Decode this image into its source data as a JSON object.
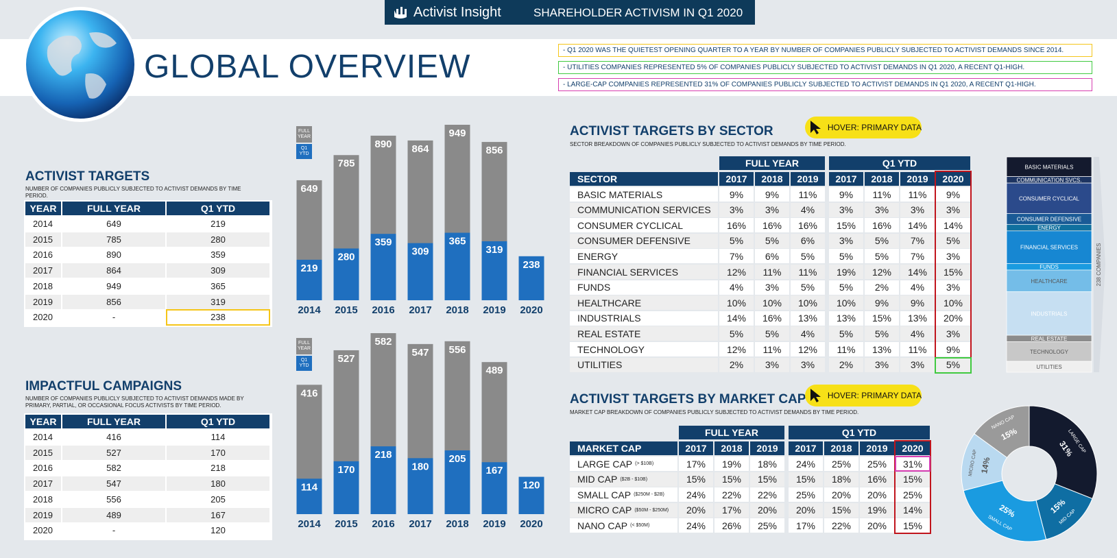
{
  "header": {
    "brand": "Activist Insight",
    "title": "SHAREHOLDER ACTIVISM IN Q1 2020"
  },
  "page_title": "GLOBAL OVERVIEW",
  "notes": [
    "- Q1 2020 WAS THE QUIETEST OPENING QUARTER TO A YEAR BY NUMBER OF COMPANIES PUBLICLY SUBJECTED TO ACTIVIST DEMANDS SINCE 2014.",
    "- UTILITIES COMPANIES REPRESENTED 5% OF COMPANIES PUBLICLY SUBJECTED TO ACTIVIST DEMANDS IN Q1 2020, A RECENT Q1-HIGH.",
    "- LARGE-CAP COMPANIES REPRESENTED 31% OF COMPANIES PUBLICLY SUBJECTED TO ACTIVIST DEMANDS IN Q1 2020, A RECENT Q1-HIGH."
  ],
  "activist_targets": {
    "title": "ACTIVIST TARGETS",
    "subtitle": "NUMBER OF COMPANIES PUBLICLY SUBJECTED TO ACTIVIST DEMANDS BY TIME PERIOD.",
    "columns": [
      "YEAR",
      "FULL YEAR",
      "Q1 YTD"
    ],
    "rows": [
      [
        "2014",
        "649",
        "219"
      ],
      [
        "2015",
        "785",
        "280"
      ],
      [
        "2016",
        "890",
        "359"
      ],
      [
        "2017",
        "864",
        "309"
      ],
      [
        "2018",
        "949",
        "365"
      ],
      [
        "2019",
        "856",
        "319"
      ],
      [
        "2020",
        "-",
        "238"
      ]
    ]
  },
  "impactful_campaigns": {
    "title": "IMPACTFUL CAMPAIGNS",
    "subtitle": "NUMBER OF COMPANIES PUBLICLY SUBJECTED TO ACTIVIST DEMANDS MADE BY PRIMARY, PARTIAL, OR OCCASIONAL FOCUS ACTIVISTS BY TIME PERIOD.",
    "columns": [
      "YEAR",
      "FULL YEAR",
      "Q1 YTD"
    ],
    "rows": [
      [
        "2014",
        "416",
        "114"
      ],
      [
        "2015",
        "527",
        "170"
      ],
      [
        "2016",
        "582",
        "218"
      ],
      [
        "2017",
        "547",
        "180"
      ],
      [
        "2018",
        "556",
        "205"
      ],
      [
        "2019",
        "489",
        "167"
      ],
      [
        "2020",
        "-",
        "120"
      ]
    ]
  },
  "sector_table": {
    "title": "ACTIVIST TARGETS BY SECTOR",
    "subtitle": "SECTOR BREAKDOWN OF COMPANIES PUBLICLY SUBJECTED TO ACTIVIST DEMANDS BY TIME PERIOD.",
    "hover": "HOVER: PRIMARY DATA",
    "groups": [
      "FULL YEAR",
      "Q1 YTD"
    ],
    "columns": [
      "SECTOR",
      "2017",
      "2018",
      "2019",
      "2017",
      "2018",
      "2019",
      "2020"
    ],
    "rows": [
      [
        "BASIC MATERIALS",
        "9%",
        "9%",
        "11%",
        "9%",
        "11%",
        "11%",
        "9%"
      ],
      [
        "COMMUNICATION SERVICES",
        "3%",
        "3%",
        "4%",
        "3%",
        "3%",
        "3%",
        "3%"
      ],
      [
        "CONSUMER CYCLICAL",
        "16%",
        "16%",
        "16%",
        "15%",
        "16%",
        "14%",
        "14%"
      ],
      [
        "CONSUMER DEFENSIVE",
        "5%",
        "5%",
        "6%",
        "3%",
        "5%",
        "7%",
        "5%"
      ],
      [
        "ENERGY",
        "7%",
        "6%",
        "5%",
        "5%",
        "5%",
        "7%",
        "3%"
      ],
      [
        "FINANCIAL SERVICES",
        "12%",
        "11%",
        "11%",
        "19%",
        "12%",
        "14%",
        "15%"
      ],
      [
        "FUNDS",
        "4%",
        "3%",
        "5%",
        "5%",
        "2%",
        "4%",
        "3%"
      ],
      [
        "HEALTHCARE",
        "10%",
        "10%",
        "10%",
        "10%",
        "9%",
        "9%",
        "10%"
      ],
      [
        "INDUSTRIALS",
        "14%",
        "16%",
        "13%",
        "13%",
        "15%",
        "13%",
        "20%"
      ],
      [
        "REAL ESTATE",
        "5%",
        "5%",
        "4%",
        "5%",
        "5%",
        "4%",
        "3%"
      ],
      [
        "TECHNOLOGY",
        "12%",
        "11%",
        "12%",
        "11%",
        "13%",
        "11%",
        "9%"
      ],
      [
        "UTILITIES",
        "2%",
        "3%",
        "3%",
        "2%",
        "3%",
        "3%",
        "5%"
      ]
    ]
  },
  "market_cap_table": {
    "title": "ACTIVIST TARGETS BY MARKET CAP",
    "subtitle": "MARKET CAP BREAKDOWN OF COMPANIES PUBLICLY SUBJECTED TO ACTIVIST DEMANDS BY TIME PERIOD.",
    "hover": "HOVER: PRIMARY DATA",
    "groups": [
      "FULL YEAR",
      "Q1 YTD"
    ],
    "columns": [
      "MARKET CAP",
      "2017",
      "2018",
      "2019",
      "2017",
      "2018",
      "2019",
      "2020"
    ],
    "rows": [
      {
        "name": "LARGE CAP",
        "note": "(> $10B)",
        "values": [
          "17%",
          "19%",
          "18%",
          "24%",
          "25%",
          "25%",
          "31%"
        ]
      },
      {
        "name": "MID CAP",
        "note": "($2B - $10B)",
        "values": [
          "15%",
          "15%",
          "15%",
          "15%",
          "18%",
          "16%",
          "15%"
        ]
      },
      {
        "name": "SMALL CAP",
        "note": "($250M - $2B)",
        "values": [
          "24%",
          "22%",
          "22%",
          "25%",
          "20%",
          "20%",
          "25%"
        ]
      },
      {
        "name": "MICRO CAP",
        "note": "($50M - $250M)",
        "values": [
          "20%",
          "17%",
          "20%",
          "20%",
          "15%",
          "19%",
          "14%"
        ]
      },
      {
        "name": "NANO CAP",
        "note": "(< $50M)",
        "values": [
          "24%",
          "26%",
          "25%",
          "17%",
          "22%",
          "20%",
          "15%"
        ]
      }
    ]
  },
  "chart_data": [
    {
      "type": "bar",
      "categories": [
        "2014",
        "2015",
        "2016",
        "2017",
        "2018",
        "2019",
        "2020"
      ],
      "series": [
        {
          "name": "FULL YEAR",
          "color": "#8a8a8a",
          "values": [
            649,
            785,
            890,
            864,
            949,
            856,
            null
          ]
        },
        {
          "name": "Q1 YTD",
          "color": "#1f6fbf",
          "values": [
            219,
            280,
            359,
            309,
            365,
            319,
            238
          ]
        }
      ]
    },
    {
      "type": "bar",
      "categories": [
        "2014",
        "2015",
        "2016",
        "2017",
        "2018",
        "2019",
        "2020"
      ],
      "series": [
        {
          "name": "FULL YEAR",
          "color": "#8a8a8a",
          "values": [
            416,
            527,
            582,
            547,
            556,
            489,
            null
          ]
        },
        {
          "name": "Q1 YTD",
          "color": "#1f6fbf",
          "values": [
            114,
            170,
            218,
            180,
            205,
            167,
            120
          ]
        }
      ]
    },
    {
      "type": "stacked_column",
      "label": "238 COMPANIES",
      "categories": [
        "BASIC MATERIALS",
        "COMMUNICATION SVCS.",
        "CONSUMER CYCLICAL",
        "CONSUMER DEFENSIVE",
        "ENERGY",
        "FINANCIAL SERVICES",
        "FUNDS",
        "HEALTHCARE",
        "INDUSTRIALS",
        "REAL ESTATE",
        "TECHNOLOGY",
        "UTILITIES"
      ],
      "values": [
        9,
        3,
        14,
        5,
        3,
        15,
        3,
        10,
        20,
        3,
        9,
        5
      ],
      "colors": [
        "#141a2e",
        "#1d3461",
        "#2b4a8b",
        "#1a5a96",
        "#10709f",
        "#1787d2",
        "#1a9be0",
        "#74bde8",
        "#c6dff2",
        "#8c8c8c",
        "#c8c8c8",
        "#efefef"
      ]
    },
    {
      "type": "donut",
      "categories": [
        "LARGE CAP",
        "MID CAP",
        "SMALL CAP",
        "MICRO CAP",
        "NANO CAP"
      ],
      "values": [
        31,
        15,
        25,
        14,
        15
      ],
      "value_labels": [
        "31%",
        "15%",
        "25%",
        "14%",
        "15%"
      ],
      "colors": [
        "#131a2e",
        "#0f6ea3",
        "#1a9be0",
        "#b9d9f0",
        "#9a9a9a"
      ]
    }
  ]
}
